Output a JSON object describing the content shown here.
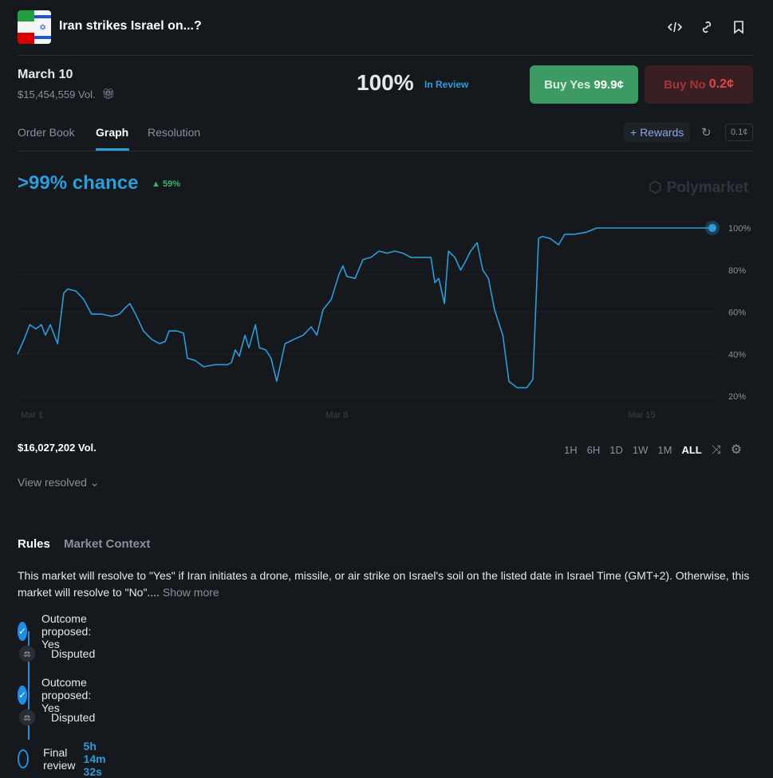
{
  "header": {
    "title": "Iran strikes Israel on...?",
    "icons": [
      "code-icon",
      "link-icon",
      "bookmark-icon"
    ]
  },
  "market": {
    "date": "March 10",
    "volume": "$15,454,559 Vol.",
    "probability": "100%",
    "status": "In Review",
    "buy_yes_label": "Buy Yes",
    "buy_yes_price": "99.9¢",
    "buy_no_label": "Buy No",
    "buy_no_price": "0.2¢"
  },
  "tabs": [
    "Order Book",
    "Graph",
    "Resolution"
  ],
  "toolbar": {
    "rewards": "+ Rewards",
    "tick": "0.1¢"
  },
  "chance": {
    "text": ">99% chance",
    "delta": "59%",
    "brand": "Polymarket"
  },
  "colors": {
    "accent": "#2d9cdb",
    "yes": "#3d9a64",
    "no": "#b8383d",
    "up": "#3db46d"
  },
  "chart_data": {
    "type": "line",
    "ylim": [
      20,
      100
    ],
    "yticks": [
      20,
      40,
      60,
      80,
      100
    ],
    "ytick_labels": [
      "20%",
      "40%",
      "60%",
      "80%",
      "100%"
    ],
    "xlim": [
      -0.33,
      15.62
    ],
    "xticks": [
      0,
      7,
      14
    ],
    "xtick_labels": [
      "Mar 1",
      "Mar 8",
      "Mar 15"
    ],
    "xunit": "days since Mar 1",
    "series": [
      {
        "name": "Yes",
        "x": [
          -0.33,
          -0.18,
          -0.05,
          0.09,
          0.22,
          0.31,
          0.42,
          0.59,
          0.73,
          0.82,
          1.01,
          1.19,
          1.37,
          1.61,
          1.83,
          2.01,
          2.14,
          2.25,
          2.38,
          2.56,
          2.75,
          2.93,
          3.06,
          3.15,
          3.33,
          3.48,
          3.57,
          3.75,
          3.94,
          4.21,
          4.49,
          4.58,
          4.67,
          4.76,
          4.89,
          4.98,
          5.13,
          5.22,
          5.37,
          5.49,
          5.62,
          5.81,
          6.01,
          6.23,
          6.41,
          6.54,
          6.68,
          6.87,
          7.05,
          7.14,
          7.23,
          7.42,
          7.6,
          7.78,
          7.97,
          8.15,
          8.33,
          8.52,
          8.7,
          8.88,
          9.16,
          9.25,
          9.34,
          9.47,
          9.56,
          9.71,
          9.84,
          9.95,
          10.07,
          10.22,
          10.35,
          10.48,
          10.62,
          10.81,
          10.95,
          11.14,
          11.36,
          11.5,
          11.63,
          11.72,
          11.9,
          12.09,
          12.23,
          12.45,
          12.73,
          12.97,
          13.19,
          15.62
        ],
        "y": [
          40,
          47,
          54,
          52,
          54,
          49,
          54,
          45,
          69,
          71,
          70,
          66,
          59,
          59,
          58,
          59,
          62,
          64,
          59,
          51,
          47,
          45,
          46,
          51,
          51,
          50,
          38,
          37,
          34,
          35,
          35,
          36,
          42,
          39,
          49,
          43,
          54,
          43,
          42,
          38,
          27,
          45,
          47,
          49,
          53,
          49,
          61,
          66,
          78,
          82,
          77,
          76,
          85,
          86,
          89,
          88,
          89,
          88,
          86,
          86,
          86,
          74,
          76,
          64,
          89,
          86,
          80,
          84,
          89,
          93,
          80,
          76,
          61,
          49,
          27,
          24,
          24,
          28,
          95,
          96,
          95,
          92,
          97,
          97,
          98,
          100,
          100,
          100
        ]
      }
    ]
  },
  "footer": {
    "volume": "$16,027,202 Vol.",
    "ranges": [
      "1H",
      "6H",
      "1D",
      "1W",
      "1M",
      "ALL"
    ],
    "view_resolved": "View resolved"
  },
  "rules": {
    "tabs": [
      "Rules",
      "Market Context"
    ],
    "text": "This market will resolve to \"Yes\" if Iran initiates a drone, missile, or air strike on Israel's soil on the listed date in Israel Time (GMT+2). Otherwise, this market will resolve to \"No\"....",
    "show_more": "Show more"
  },
  "timeline": [
    {
      "label": "Outcome proposed: Yes",
      "type": "check"
    },
    {
      "label": "Disputed",
      "type": "disputed"
    },
    {
      "label": "Outcome proposed: Yes",
      "type": "check"
    },
    {
      "label": "Disputed",
      "type": "disputed"
    },
    {
      "label": "Final review",
      "type": "pending",
      "timer": "5h 14m 32s"
    }
  ]
}
